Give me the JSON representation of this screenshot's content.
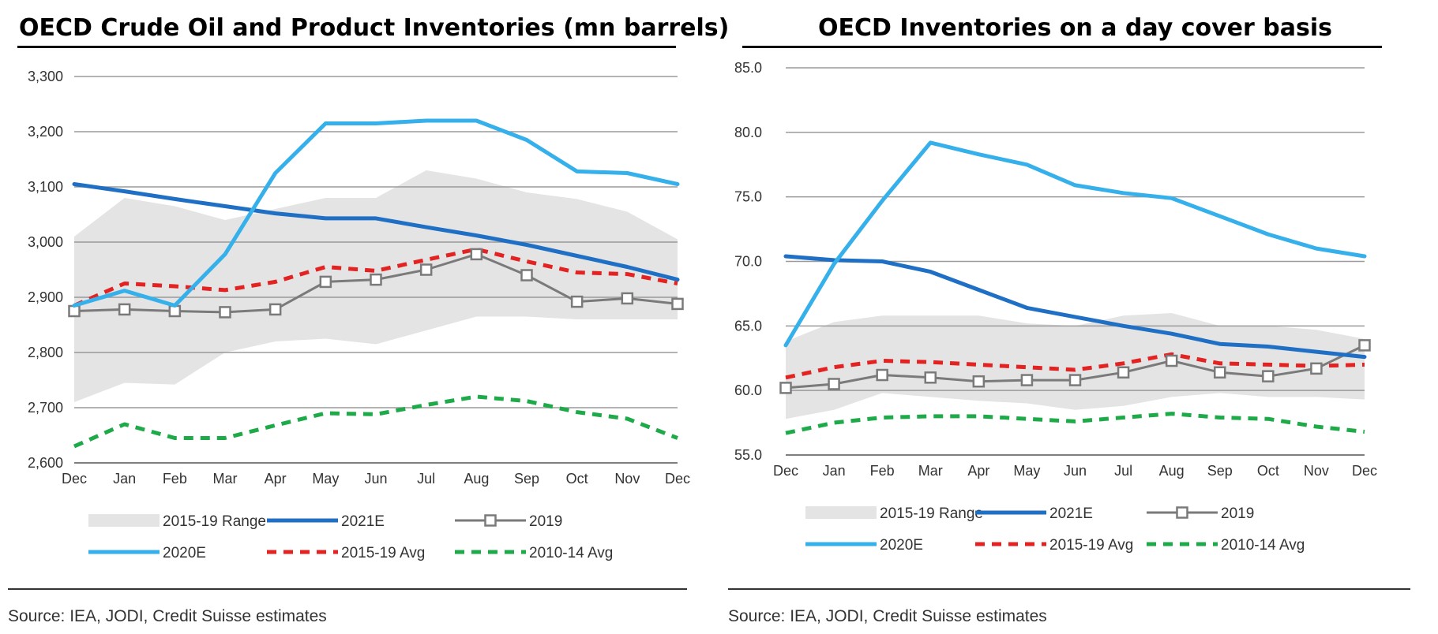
{
  "source_text": "Source: IEA, JODI, Credit Suisse estimates",
  "chart_data": [
    {
      "type": "line",
      "title": "OECD Crude Oil and Product Inventories (mn barrels)",
      "categories": [
        "Dec",
        "Jan",
        "Feb",
        "Mar",
        "Apr",
        "May",
        "Jun",
        "Jul",
        "Aug",
        "Sep",
        "Oct",
        "Nov",
        "Dec"
      ],
      "ylim": [
        2600,
        3300
      ],
      "yticks": [
        2600,
        2700,
        2800,
        2900,
        3000,
        3100,
        3200,
        3300
      ],
      "ytick_labels": [
        "2,600",
        "2,700",
        "2,800",
        "2,900",
        "3,000",
        "3,100",
        "3,200",
        "3,300"
      ],
      "grid": true,
      "range": {
        "name": "2015-19 Range",
        "color": "#e4e4e4",
        "low": [
          2710,
          2745,
          2742,
          2800,
          2820,
          2825,
          2815,
          2840,
          2865,
          2865,
          2860,
          2860,
          2860
        ],
        "high": [
          3010,
          3080,
          3065,
          3040,
          3060,
          3080,
          3080,
          3130,
          3115,
          3090,
          3078,
          3055,
          3005
        ]
      },
      "series": [
        {
          "name": "2021E",
          "color": "#1f6fc4",
          "style": "solid",
          "width": 5,
          "values": [
            3105,
            3092,
            3078,
            3065,
            3052,
            3043,
            3043,
            3027,
            3012,
            2995,
            2975,
            2955,
            2932
          ]
        },
        {
          "name": "2019",
          "color": "#7a7a7a",
          "style": "marker",
          "width": 3,
          "values": [
            2875,
            2878,
            2875,
            2873,
            2878,
            2928,
            2932,
            2950,
            2978,
            2940,
            2892,
            2898,
            2888
          ]
        },
        {
          "name": "2020E",
          "color": "#35b0ea",
          "style": "solid",
          "width": 5,
          "values": [
            2885,
            2912,
            2885,
            2978,
            3125,
            3215,
            3215,
            3220,
            3220,
            3185,
            3128,
            3125,
            3105
          ]
        },
        {
          "name": "2015-19 Avg",
          "color": "#e32222",
          "style": "dash",
          "width": 5,
          "values": [
            2885,
            2925,
            2920,
            2913,
            2928,
            2955,
            2948,
            2968,
            2987,
            2965,
            2945,
            2942,
            2925
          ]
        },
        {
          "name": "2010-14 Avg",
          "color": "#1faa4a",
          "style": "dash",
          "width": 5,
          "values": [
            2630,
            2670,
            2645,
            2645,
            2668,
            2690,
            2688,
            2705,
            2720,
            2712,
            2692,
            2680,
            2645
          ]
        }
      ],
      "legend_rows": [
        [
          "2015-19 Range",
          "2021E",
          "2019"
        ],
        [
          "2020E",
          "2015-19 Avg",
          "2010-14 Avg"
        ]
      ],
      "legend_position": "bottom"
    },
    {
      "type": "line",
      "title": "OECD Inventories on a day cover basis",
      "categories": [
        "Dec",
        "Jan",
        "Feb",
        "Mar",
        "Apr",
        "May",
        "Jun",
        "Jul",
        "Aug",
        "Sep",
        "Oct",
        "Nov",
        "Dec"
      ],
      "ylim": [
        55,
        85
      ],
      "yticks": [
        55,
        60,
        65,
        70,
        75,
        80,
        85
      ],
      "ytick_labels": [
        "55.0",
        "60.0",
        "65.0",
        "70.0",
        "75.0",
        "80.0",
        "85.0"
      ],
      "grid": true,
      "range": {
        "name": "2015-19 Range",
        "color": "#e4e4e4",
        "low": [
          57.8,
          58.5,
          59.8,
          59.5,
          59.2,
          59.0,
          58.5,
          58.8,
          59.5,
          59.8,
          59.5,
          59.5,
          59.3
        ],
        "high": [
          63.8,
          65.3,
          65.8,
          65.8,
          65.8,
          65.2,
          65.0,
          65.8,
          66.0,
          65.0,
          65.0,
          64.7,
          64.0
        ]
      },
      "series": [
        {
          "name": "2021E",
          "color": "#1f6fc4",
          "style": "solid",
          "width": 5,
          "values": [
            70.4,
            70.1,
            70.0,
            69.2,
            67.8,
            66.4,
            65.7,
            65.0,
            64.4,
            63.6,
            63.4,
            63.0,
            62.6
          ]
        },
        {
          "name": "2019",
          "color": "#7a7a7a",
          "style": "marker",
          "width": 3,
          "values": [
            60.2,
            60.5,
            61.2,
            61.0,
            60.7,
            60.8,
            60.8,
            61.4,
            62.3,
            61.4,
            61.1,
            61.7,
            63.5
          ]
        },
        {
          "name": "2020E",
          "color": "#35b0ea",
          "style": "solid",
          "width": 5,
          "values": [
            63.5,
            69.8,
            74.7,
            79.2,
            78.3,
            77.5,
            75.9,
            75.3,
            74.9,
            73.5,
            72.1,
            71.0,
            70.4
          ]
        },
        {
          "name": "2015-19 Avg",
          "color": "#e32222",
          "style": "dash",
          "width": 5,
          "values": [
            61.0,
            61.8,
            62.3,
            62.2,
            62.0,
            61.8,
            61.6,
            62.1,
            62.8,
            62.1,
            62.0,
            61.9,
            62.0
          ]
        },
        {
          "name": "2010-14 Avg",
          "color": "#1faa4a",
          "style": "dash",
          "width": 5,
          "values": [
            56.7,
            57.5,
            57.9,
            58.0,
            58.0,
            57.8,
            57.6,
            57.9,
            58.2,
            57.9,
            57.8,
            57.2,
            56.8
          ]
        }
      ],
      "legend_rows": [
        [
          "2015-19 Range",
          "2021E",
          "2019"
        ],
        [
          "2020E",
          "2015-19 Avg",
          "2010-14 Avg"
        ]
      ],
      "legend_position": "bottom"
    }
  ]
}
